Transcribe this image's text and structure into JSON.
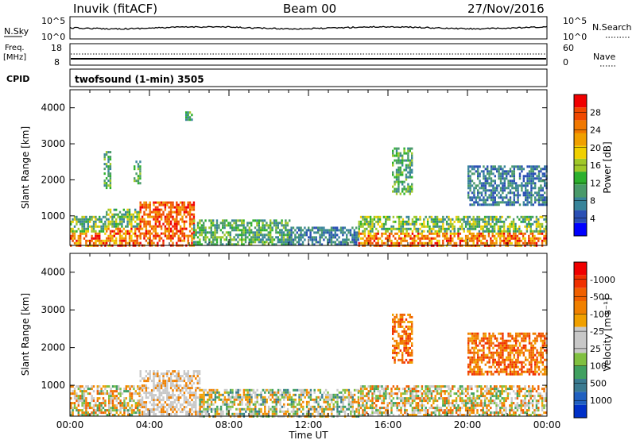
{
  "header": {
    "station": "Inuvik (fitACF)",
    "beam": "Beam 00",
    "date": "27/Nov/2016"
  },
  "top_panels": {
    "nsky": {
      "label": "N.Sky",
      "tick_top": "10^5",
      "tick_bottom": "10^0",
      "right_label": "N.Search"
    },
    "freq": {
      "label_line1": "Freq.",
      "label_line2": "[MHz]",
      "tick_top": "18",
      "tick_bottom": "8",
      "right_tick_top": "60",
      "right_tick_bottom": "0",
      "right_label": "Nave"
    },
    "cpid": {
      "label": "CPID",
      "value": "twofsound (1-min) 3505"
    }
  },
  "x_axis": {
    "label": "Time UT",
    "ticks": [
      "00:00",
      "04:00",
      "08:00",
      "12:00",
      "16:00",
      "20:00",
      "00:00"
    ]
  },
  "chart_data": [
    {
      "type": "heatmap",
      "xlabel": "Time UT",
      "ylabel": "Slant Range [km]",
      "x_range_hours": [
        0,
        24
      ],
      "y_range_km": [
        180,
        4500
      ],
      "y_ticks": [
        1000,
        2000,
        3000,
        4000
      ],
      "colorbar": {
        "label": "Power [dB]",
        "ticks": [
          "4",
          "8",
          "12",
          "16",
          "20",
          "24",
          "28"
        ],
        "colors": [
          "#0000ff",
          "#2a4fb4",
          "#38849a",
          "#4a9a6a",
          "#2db02d",
          "#a0c828",
          "#f0d000",
          "#f0a000",
          "#f07800",
          "#f04800",
          "#f00000"
        ]
      },
      "regions": [
        {
          "t": [
            0.0,
            1.8
          ],
          "r": [
            200,
            1000
          ],
          "level": "high"
        },
        {
          "t": [
            1.8,
            3.5
          ],
          "r": [
            200,
            1200
          ],
          "level": "high"
        },
        {
          "t": [
            3.5,
            6.2
          ],
          "r": [
            200,
            1400
          ],
          "level": "very-high"
        },
        {
          "t": [
            6.2,
            11.0
          ],
          "r": [
            200,
            900
          ],
          "level": "medium"
        },
        {
          "t": [
            11.0,
            14.5
          ],
          "r": [
            200,
            700
          ],
          "level": "low"
        },
        {
          "t": [
            14.5,
            24.0
          ],
          "r": [
            200,
            1000
          ],
          "level": "high"
        },
        {
          "t": [
            1.7,
            2.0
          ],
          "r": [
            1800,
            2800
          ],
          "level": "medium"
        },
        {
          "t": [
            3.2,
            3.5
          ],
          "r": [
            1900,
            2600
          ],
          "level": "medium"
        },
        {
          "t": [
            5.8,
            6.1
          ],
          "r": [
            3700,
            3900
          ],
          "level": "medium"
        },
        {
          "t": [
            16.2,
            17.2
          ],
          "r": [
            1600,
            2900
          ],
          "level": "medium"
        },
        {
          "t": [
            20.0,
            24.0
          ],
          "r": [
            1300,
            2400
          ],
          "level": "low"
        }
      ]
    },
    {
      "type": "heatmap",
      "xlabel": "Time UT",
      "ylabel": "Slant Range [km]",
      "x_range_hours": [
        0,
        24
      ],
      "y_range_km": [
        180,
        4500
      ],
      "y_ticks": [
        1000,
        2000,
        3000,
        4000
      ],
      "colorbar": {
        "label": "Velocity [m s⁻¹]",
        "ticks": [
          "1000",
          "500",
          "100",
          "25",
          "-25",
          "-100",
          "-500",
          "-1000"
        ],
        "colors": [
          "#0030c8",
          "#2060c0",
          "#3a7a90",
          "#40a060",
          "#80c040",
          "#c8c8c8",
          "#c8c8c8",
          "#f0a000",
          "#f08000",
          "#f06000",
          "#f03000",
          "#f00000"
        ]
      },
      "regions": [
        {
          "t": [
            0.0,
            3.5
          ],
          "r": [
            200,
            1000
          ],
          "kind": "mixed-orange"
        },
        {
          "t": [
            3.5,
            6.5
          ],
          "r": [
            200,
            1400
          ],
          "kind": "ground-gray"
        },
        {
          "t": [
            6.5,
            14.5
          ],
          "r": [
            200,
            900
          ],
          "kind": "mixed-green"
        },
        {
          "t": [
            14.5,
            24.0
          ],
          "r": [
            200,
            1000
          ],
          "kind": "mixed-orange"
        },
        {
          "t": [
            16.2,
            17.2
          ],
          "r": [
            1600,
            2900
          ],
          "kind": "orange"
        },
        {
          "t": [
            20.0,
            24.0
          ],
          "r": [
            1300,
            2400
          ],
          "kind": "orange"
        }
      ]
    }
  ]
}
